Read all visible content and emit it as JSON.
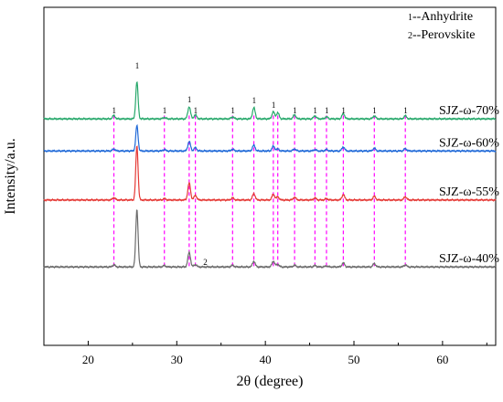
{
  "chart_data": {
    "type": "line",
    "title": "",
    "xlabel": "2θ (degree)",
    "ylabel": "Intensity/a.u.",
    "xlim": [
      15,
      66
    ],
    "ylim": [
      0,
      1
    ],
    "grid": false,
    "legend_position": "top-right",
    "x_ticks": [
      20,
      30,
      40,
      50,
      60
    ],
    "legend_entries": [
      {
        "number": "1",
        "text": "--Anhydrite"
      },
      {
        "number": "2",
        "text": "--Perovskite"
      }
    ],
    "series": [
      {
        "name": "SJZ-ω-70%",
        "color": "#27a86b",
        "baseline": 0.67,
        "label_x": 63
      },
      {
        "name": "SJZ-ω-60%",
        "color": "#1f69d8",
        "baseline": 0.575,
        "label_x": 63
      },
      {
        "name": "SJZ-ω-55%",
        "color": "#e53935",
        "baseline": 0.43,
        "label_x": 63
      },
      {
        "name": "SJZ-ω-40%",
        "color": "#6b6b6b",
        "baseline": 0.232,
        "label_x": 63
      }
    ],
    "peaks": [
      {
        "x": 22.9,
        "heights": [
          0.01,
          0.006,
          0.007,
          0.006
        ]
      },
      {
        "x": 25.5,
        "heights": [
          0.11,
          0.075,
          0.16,
          0.17
        ]
      },
      {
        "x": 28.6,
        "heights": [
          0.004,
          0.004,
          0.004,
          0.004
        ]
      },
      {
        "x": 31.4,
        "heights": [
          0.036,
          0.028,
          0.05,
          0.043
        ]
      },
      {
        "x": 32.1,
        "heights": [
          0.012,
          0.01,
          0.014,
          0.007
        ]
      },
      {
        "x": 36.3,
        "heights": [
          0.006,
          0.005,
          0.006,
          0.005
        ]
      },
      {
        "x": 38.7,
        "heights": [
          0.033,
          0.017,
          0.019,
          0.017
        ]
      },
      {
        "x": 40.9,
        "heights": [
          0.021,
          0.014,
          0.017,
          0.017
        ]
      },
      {
        "x": 41.4,
        "heights": [
          0.018,
          0.006,
          0.009,
          0.008
        ]
      },
      {
        "x": 43.3,
        "heights": [
          0.012,
          0.006,
          0.008,
          0.005
        ]
      },
      {
        "x": 45.6,
        "heights": [
          0.009,
          0.004,
          0.006,
          0.004
        ]
      },
      {
        "x": 46.9,
        "heights": [
          0.006,
          0.004,
          0.004,
          0.003
        ]
      },
      {
        "x": 48.8,
        "heights": [
          0.016,
          0.012,
          0.016,
          0.012
        ]
      },
      {
        "x": 52.3,
        "heights": [
          0.009,
          0.008,
          0.011,
          0.01
        ]
      },
      {
        "x": 55.8,
        "heights": [
          0.009,
          0.007,
          0.01,
          0.006
        ]
      }
    ],
    "dashed_reference_lines_x": [
      22.9,
      28.6,
      31.4,
      32.1,
      36.3,
      38.7,
      40.9,
      41.4,
      43.3,
      45.6,
      46.9,
      48.8,
      52.3,
      55.8
    ],
    "annotations": [
      {
        "text": "1",
        "x": 25.5,
        "series_index": 0
      },
      {
        "text": "1",
        "x": 22.9,
        "series_index": 0
      },
      {
        "text": "1",
        "x": 28.6,
        "series_index": 0
      },
      {
        "text": "1",
        "x": 31.4,
        "series_index": 0
      },
      {
        "text": "1",
        "x": 32.1,
        "series_index": 0
      },
      {
        "text": "1",
        "x": 36.3,
        "series_index": 0
      },
      {
        "text": "1",
        "x": 38.7,
        "series_index": 0
      },
      {
        "text": "1",
        "x": 40.9,
        "series_index": 0
      },
      {
        "text": "1",
        "x": 43.3,
        "series_index": 0
      },
      {
        "text": "1",
        "x": 45.6,
        "series_index": 0
      },
      {
        "text": "1",
        "x": 46.9,
        "series_index": 0
      },
      {
        "text": "1",
        "x": 48.8,
        "series_index": 0
      },
      {
        "text": "1",
        "x": 52.3,
        "series_index": 0
      },
      {
        "text": "1",
        "x": 55.8,
        "series_index": 0
      },
      {
        "text": "2",
        "x": 33.2,
        "series_index": 3
      }
    ]
  }
}
